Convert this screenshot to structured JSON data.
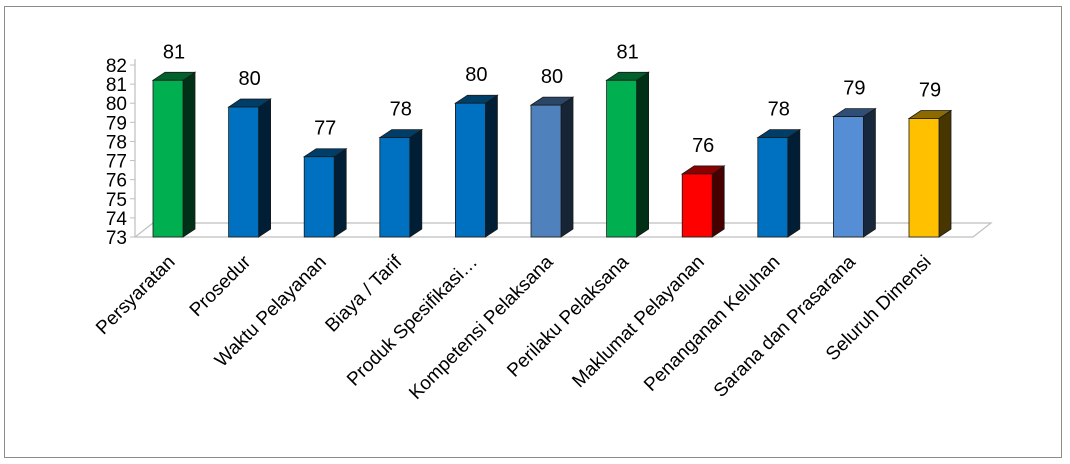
{
  "chart_data": {
    "type": "bar",
    "style": "3d-column",
    "categories": [
      "Persyaratan",
      "Prosedur",
      "Waktu Pelayanan",
      "Biaya / Tarif",
      "Produk Spesifikasi…",
      "Kompetensi Pelaksana",
      "Perilaku Pelaksana",
      "Maklumat Pelayanan",
      "Penanganan Keluhan",
      "Sarana dan Prasarana",
      "Seluruh Dimensi"
    ],
    "values": [
      81.2,
      79.8,
      77.2,
      78.2,
      80.0,
      79.9,
      81.2,
      76.3,
      78.2,
      79.3,
      79.2
    ],
    "data_labels": [
      "81",
      "80",
      "77",
      "78",
      "80",
      "80",
      "81",
      "76",
      "78",
      "79",
      "79"
    ],
    "bar_colors": [
      "#00b050",
      "#0070c0",
      "#0070c0",
      "#0070c0",
      "#0070c0",
      "#4f81bd",
      "#00b050",
      "#ff0000",
      "#0070c0",
      "#558ed5",
      "#ffc000"
    ],
    "yticks": [
      "82",
      "81",
      "80",
      "79",
      "78",
      "77",
      "76",
      "75",
      "74",
      "73"
    ],
    "ylim": [
      73,
      82
    ],
    "title": "",
    "xlabel": "",
    "ylabel": "",
    "grid": false,
    "legend": "none"
  }
}
